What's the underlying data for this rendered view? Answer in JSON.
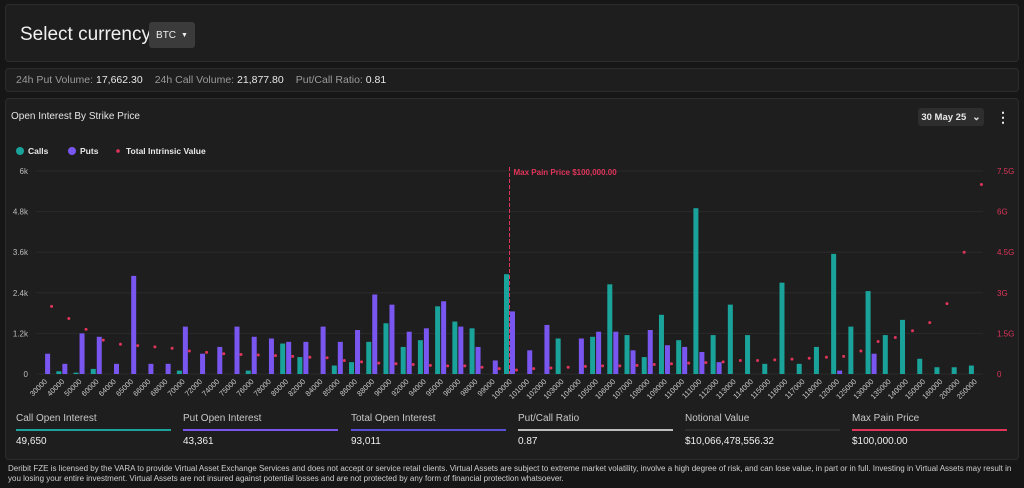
{
  "top": {
    "label": "Select currency:",
    "currency": "BTC"
  },
  "stats": [
    {
      "label": "24h Put Volume:",
      "value": "17,662.30"
    },
    {
      "label": "24h Call Volume:",
      "value": "21,877.80"
    },
    {
      "label": "Put/Call Ratio:",
      "value": "0.81"
    }
  ],
  "main": {
    "title": "Open Interest By Strike Price",
    "expiry": "30 May 25"
  },
  "colors": {
    "calls": "#1aa39a",
    "puts": "#7a56f0",
    "intrinsic": "#e0345a",
    "bg": "#1e1e1e",
    "grid": "#2a2a2a"
  },
  "chart_data": {
    "type": "bar",
    "legend": [
      "Calls",
      "Puts",
      "Total Intrinsic Value"
    ],
    "legend_position": "top-left",
    "categories": [
      "30000",
      "40000",
      "50000",
      "60000",
      "64000",
      "65000",
      "66000",
      "68000",
      "70000",
      "72000",
      "74000",
      "75000",
      "76000",
      "78000",
      "80000",
      "82000",
      "84000",
      "85000",
      "86000",
      "88000",
      "90000",
      "92000",
      "94000",
      "95000",
      "96000",
      "98000",
      "99000",
      "100000",
      "101000",
      "102000",
      "103000",
      "104000",
      "105000",
      "106000",
      "107000",
      "108000",
      "109000",
      "110000",
      "111000",
      "112000",
      "113000",
      "114000",
      "115000",
      "116000",
      "117000",
      "118000",
      "120000",
      "125000",
      "130000",
      "135000",
      "140000",
      "150000",
      "160000",
      "200000",
      "250000"
    ],
    "series": [
      {
        "name": "Calls",
        "axis": "left",
        "values": [
          0,
          80,
          40,
          150,
          0,
          0,
          0,
          0,
          100,
          0,
          0,
          0,
          100,
          0,
          900,
          500,
          0,
          250,
          350,
          950,
          1500,
          800,
          1000,
          2000,
          1550,
          1350,
          0,
          2950,
          0,
          0,
          1050,
          0,
          1100,
          2650,
          1150,
          500,
          1750,
          1000,
          4900,
          1150,
          2050,
          1150,
          300,
          2700,
          300,
          800,
          3550,
          1400,
          2450,
          1150,
          1600,
          450,
          200,
          200,
          250
        ]
      },
      {
        "name": "Puts",
        "axis": "left",
        "values": [
          600,
          300,
          1200,
          1100,
          300,
          2900,
          300,
          300,
          1400,
          600,
          800,
          1400,
          1100,
          1050,
          950,
          950,
          1400,
          950,
          1300,
          2350,
          2050,
          1250,
          1350,
          2150,
          1400,
          800,
          400,
          1850,
          700,
          1450,
          0,
          1050,
          1250,
          1250,
          700,
          1300,
          850,
          800,
          650,
          350,
          0,
          0,
          0,
          0,
          0,
          0,
          100,
          0,
          600,
          0,
          0,
          0,
          0,
          0,
          0
        ]
      },
      {
        "name": "Total Intrinsic Value",
        "axis": "right",
        "values": [
          2.5,
          2.05,
          1.65,
          1.25,
          1.1,
          1.05,
          1.0,
          0.95,
          0.85,
          0.8,
          0.75,
          0.72,
          0.7,
          0.68,
          0.65,
          0.62,
          0.6,
          0.5,
          0.45,
          0.4,
          0.38,
          0.35,
          0.32,
          0.3,
          0.3,
          0.25,
          0.2,
          0.15,
          0.2,
          0.22,
          0.25,
          0.28,
          0.3,
          0.3,
          0.32,
          0.35,
          0.38,
          0.4,
          0.42,
          0.45,
          0.5,
          0.5,
          0.52,
          0.55,
          0.58,
          0.62,
          0.65,
          0.85,
          1.2,
          1.35,
          1.6,
          1.9,
          2.6,
          4.5,
          7.0
        ]
      }
    ],
    "y_left": {
      "ticks": [
        "0",
        "1.2k",
        "2.4k",
        "3.6k",
        "4.8k",
        "6k"
      ],
      "range": [
        0,
        6000
      ]
    },
    "y_right": {
      "ticks": [
        "0",
        "1.5G",
        "3G",
        "4.5G",
        "6G",
        "7.5G"
      ],
      "range": [
        0,
        7.5
      ],
      "unit": "G"
    },
    "annotation": {
      "text": "Max Pain Price $100,000.00",
      "category": "100000"
    },
    "grid": true
  },
  "summary": [
    {
      "label": "Call Open Interest",
      "value": "49,650",
      "color": "#1aa39a"
    },
    {
      "label": "Put Open Interest",
      "value": "43,361",
      "color": "#7a56f0"
    },
    {
      "label": "Total Open Interest",
      "value": "93,011",
      "color": "#5a4fd8"
    },
    {
      "label": "Put/Call Ratio",
      "value": "0.87",
      "color": "#bdbdbd"
    },
    {
      "label": "Notional Value",
      "value": "$10,066,478,556.32",
      "color": "#2e2e2e"
    },
    {
      "label": "Max Pain Price",
      "value": "$100,000.00",
      "color": "#e0345a"
    }
  ],
  "disclaimer": "Deribit FZE is licensed by the VARA to provide Virtual Asset Exchange Services and does not accept or service retail clients. Virtual Assets are subject to extreme market volatility, involve a high degree of risk, and can lose value, in part or in full. Investing in Virtual Assets may result in you losing your entire investment. Virtual Assets are not insured against potential losses and are not protected by any form of financial protection whatsoever."
}
